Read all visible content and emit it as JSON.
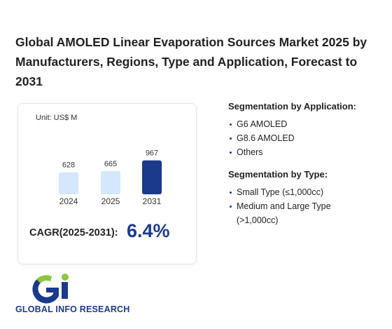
{
  "header": {
    "title": "Global AMOLED Linear Evaporation Sources Market 2025 by Manufacturers, Regions, Type and Application, Forecast to 2031"
  },
  "chart_data": {
    "type": "bar",
    "subtitle": "Unit: US$ M",
    "categories": [
      "2024",
      "2025",
      "2031"
    ],
    "values": [
      628,
      665,
      967
    ],
    "colors": [
      "#d4e7fb",
      "#d4e7fb",
      "#1b3a8c"
    ]
  },
  "cagr": {
    "label": "CAGR(2025-2031):",
    "value": "6.4%"
  },
  "segments": [
    {
      "heading": "Segmentation by Application:",
      "items": [
        "G6 AMOLED",
        "G8.6 AMOLED",
        "Others"
      ]
    },
    {
      "heading": "Segmentation by Type:",
      "items": [
        "Small Type (≤1,000cc)",
        "Medium and Large Type (>1,000cc)"
      ]
    }
  ],
  "logo": {
    "text": "GLOBAL INFO RESEARCH"
  }
}
